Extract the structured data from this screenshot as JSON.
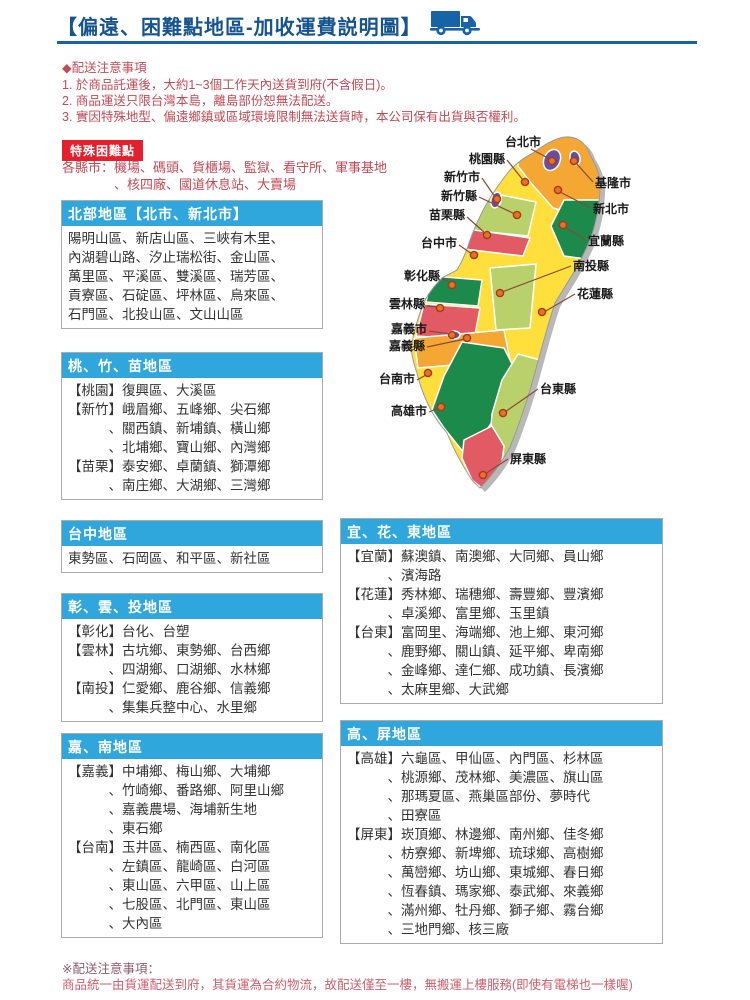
{
  "page": {
    "title": "【偏遠、困難點地區-加收運費説明圖】"
  },
  "notice": {
    "heading": "◆配送注意事項",
    "items": [
      "1. 於商品託運後，大約1~3個工作天內送貨到府(不含假日)。",
      "2. 商品運送只限台灣本島，離島部份恕無法配送。",
      "3. 實因特殊地型、偏遠鄉鎮或區域環境限制無法送貨時，本公司保有出貨與否權利。"
    ]
  },
  "special": {
    "badge": "特殊困難點",
    "lines": [
      "各縣市：機場、碼頭、貨櫃場、監獄、看守所、軍事基地",
      "　　　　、核四廠、國道休息站、大賣場"
    ]
  },
  "boxes": {
    "north": {
      "title": "北部地區【北市、新北市】",
      "lines": [
        "陽明山區、新店山區、三峽有木里、",
        "內湖碧山路、汐止瑞松街、金山區、",
        "萬里區、平溪區、雙溪區、瑞芳區、",
        "貢寮區、石碇區、坪林區、烏來區、",
        "石門區、北投山區、文山山區"
      ]
    },
    "taozhumiao": {
      "title": "桃、竹、苗地區",
      "lines": [
        "【桃園】復興區、大溪區",
        "【新竹】峨眉鄉、五峰鄉、尖石鄉",
        "　　　、關西鎮、新埔鎮、橫山鄉",
        "　　　、北埔鄉、寶山鄉、內灣鄉",
        "【苗栗】泰安鄉、卓蘭鎮、獅潭鄉",
        "　　　、南庄鄉、大湖鄉、三灣鄉"
      ]
    },
    "taichung": {
      "title": "台中地區",
      "lines": [
        "東勢區、石岡區、和平區、新社區"
      ]
    },
    "changyuntou": {
      "title": "彰、雲、投地區",
      "lines": [
        "【彰化】台化、台塑",
        "【雲林】古坑鄉、東勢鄉、台西鄉",
        "　　　、四湖鄉、口湖鄉、水林鄉",
        "【南投】仁愛鄉、鹿谷鄉、信義鄉",
        "　　　、集集兵整中心、水里鄉"
      ]
    },
    "jianan": {
      "title": "嘉、南地區",
      "lines": [
        "【嘉義】中埔鄉、梅山鄉、大埔鄉",
        "　　　、竹崎鄉、番路鄉、阿里山鄉",
        "　　　、嘉義農場、海埔新生地",
        "　　　、東石鄉",
        "【台南】玉井區、楠西區、南化區",
        "　　　、左鎮區、龍崎區、白河區",
        "　　　、東山區、六甲區、山上區",
        "　　　、七股區、北門區、東山區",
        "　　　、大內區"
      ]
    },
    "yihuadong": {
      "title": "宜、花、東地區",
      "lines": [
        "【宜蘭】蘇澳鎮、南澳鄉、大同鄉、員山鄉",
        "　　　、濱海路",
        "【花蓮】秀林鄉、瑞穗鄉、壽豐鄉、豐濱鄉",
        "　　　、卓溪鄉、富里鄉、玉里鎮",
        "【台東】富岡里、海端鄉、池上鄉、東河鄉",
        "　　　、鹿野鄉、關山鎮、延平鄉、卑南鄉",
        "　　　、金峰鄉、達仁鄉、成功鎮、長濱鄉",
        "　　　、太麻里鄉、大武鄉"
      ]
    },
    "gaoping": {
      "title": "高、屏地區",
      "lines": [
        "【高雄】六龜區、甲仙區、內門區、杉林區",
        "　　　、桃源鄉、茂林鄉、美濃區、旗山區",
        "　　　、那瑪夏區、燕巢區部份、夢時代",
        "　　　、田寮區",
        "【屏東】崁頂鄉、林邊鄉、南州鄉、佳冬鄉",
        "　　　、枋寮鄉、新埤鄉、琉球鄉、高樹鄉",
        "　　　、萬巒鄉、坊山鄉、東城鄉、春日鄉",
        "　　　、恆春鎮、瑪家鄉、泰武鄉、來義鄉",
        "　　　、滿州鄉、牡丹鄉、獅子鄉、霧台鄉",
        "　　　、三地門鄉、核三廠"
      ]
    }
  },
  "footnote": {
    "heading": "※配送注意事項：",
    "text": "商品統一由貨運配送到府，其貨運為合約物流，故配送僅至一樓，無搬運上樓服務(即使有電梯也一樣喔)"
  },
  "map": {
    "palette": {
      "yellow": "#FFDF3C",
      "orange": "#F5A733",
      "dark_green": "#1B8A4B",
      "light_green": "#B9D16A",
      "red": "#E15A64",
      "purple": "#6A4DA0",
      "shadow": "#B8B8B8",
      "coast": "#999999",
      "dot_fill": "#E8721F",
      "dot_ring": "#A03A22",
      "leader": "#8A4A3A",
      "label_text": "#1A1A1A"
    },
    "labels": [
      {
        "name": "台北市",
        "t": [
          155,
          18
        ],
        "anchor": "middle",
        "line": [
          163,
          21,
          182,
          31
        ],
        "dot": [
          184,
          33
        ]
      },
      {
        "name": "桃園縣",
        "t": [
          137,
          35
        ],
        "anchor": "end",
        "line": [
          139,
          32,
          155,
          52
        ],
        "dot": [
          157,
          54
        ]
      },
      {
        "name": "新竹市",
        "t": [
          112,
          53
        ],
        "anchor": "end",
        "line": [
          114,
          50,
          127,
          69
        ],
        "dot": [
          129,
          71
        ]
      },
      {
        "name": "新竹縣",
        "t": [
          109,
          72
        ],
        "anchor": "end",
        "line": [
          111,
          69,
          147,
          86
        ],
        "dot": [
          149,
          87
        ]
      },
      {
        "name": "苗栗縣",
        "t": [
          97,
          91
        ],
        "anchor": "end",
        "line": [
          99,
          89,
          117,
          105
        ],
        "dot": [
          119,
          107
        ]
      },
      {
        "name": "台中市",
        "t": [
          89,
          119
        ],
        "anchor": "end",
        "line": [
          91,
          117,
          104,
          126
        ],
        "dot": [
          106,
          127
        ]
      },
      {
        "name": "彰化縣",
        "t": [
          72,
          152
        ],
        "anchor": "end",
        "line": [
          74,
          150,
          82,
          155
        ],
        "dot": [
          84,
          157
        ]
      },
      {
        "name": "雲林縣",
        "t": [
          57,
          180
        ],
        "anchor": "end",
        "line": [
          59,
          178,
          70,
          179
        ],
        "dot": [
          72,
          180
        ]
      },
      {
        "name": "嘉義市",
        "t": [
          59,
          205
        ],
        "anchor": "end",
        "line": [
          61,
          203,
          82,
          206
        ],
        "dot": [
          84,
          207
        ]
      },
      {
        "name": "嘉義縣",
        "t": [
          57,
          222
        ],
        "anchor": "end",
        "line": [
          59,
          219,
          97,
          211
        ],
        "dot": [
          99,
          210
        ]
      },
      {
        "name": "台南市",
        "t": [
          47,
          255
        ],
        "anchor": "end",
        "line": [
          49,
          252,
          58,
          247
        ],
        "dot": [
          60,
          245
        ]
      },
      {
        "name": "高雄市",
        "t": [
          59,
          287
        ],
        "anchor": "end",
        "line": [
          61,
          284,
          71,
          280
        ],
        "dot": [
          73,
          279
        ]
      },
      {
        "name": "基隆市",
        "t": [
          227,
          59
        ],
        "anchor": "start",
        "line": [
          225,
          54,
          208,
          35
        ],
        "dot": [
          206,
          33
        ]
      },
      {
        "name": "新北市",
        "t": [
          225,
          85
        ],
        "anchor": "start",
        "line": [
          223,
          80,
          192,
          64
        ],
        "dot": [
          190,
          62
        ]
      },
      {
        "name": "宜蘭縣",
        "t": [
          220,
          117
        ],
        "anchor": "start",
        "line": [
          218,
          112,
          197,
          99
        ],
        "dot": [
          195,
          97
        ]
      },
      {
        "name": "南投縣",
        "t": [
          205,
          142
        ],
        "anchor": "start",
        "line": [
          203,
          138,
          134,
          164
        ],
        "dot": [
          132,
          165
        ]
      },
      {
        "name": "花蓮縣",
        "t": [
          209,
          170
        ],
        "anchor": "start",
        "line": [
          207,
          166,
          176,
          184
        ],
        "dot": [
          174,
          184
        ]
      },
      {
        "name": "台東縣",
        "t": [
          172,
          265
        ],
        "anchor": "start",
        "line": [
          170,
          261,
          137,
          284
        ],
        "dot": [
          135,
          285
        ]
      },
      {
        "name": "屏東縣",
        "t": [
          142,
          335
        ],
        "anchor": "start",
        "line": [
          140,
          331,
          117,
          346
        ],
        "dot": [
          115,
          347
        ]
      }
    ]
  },
  "colors": {
    "title_blue": "#15548F",
    "rule_blue": "#1663A5",
    "notice_red": "#C24A55",
    "badge_red": "#E5202E",
    "header_blue": "#2FA7DC",
    "box_border": "#ABABAB",
    "body_text": "#333333",
    "footnote_heading": "#8A5A6E",
    "footnote_text": "#C95F6F"
  }
}
